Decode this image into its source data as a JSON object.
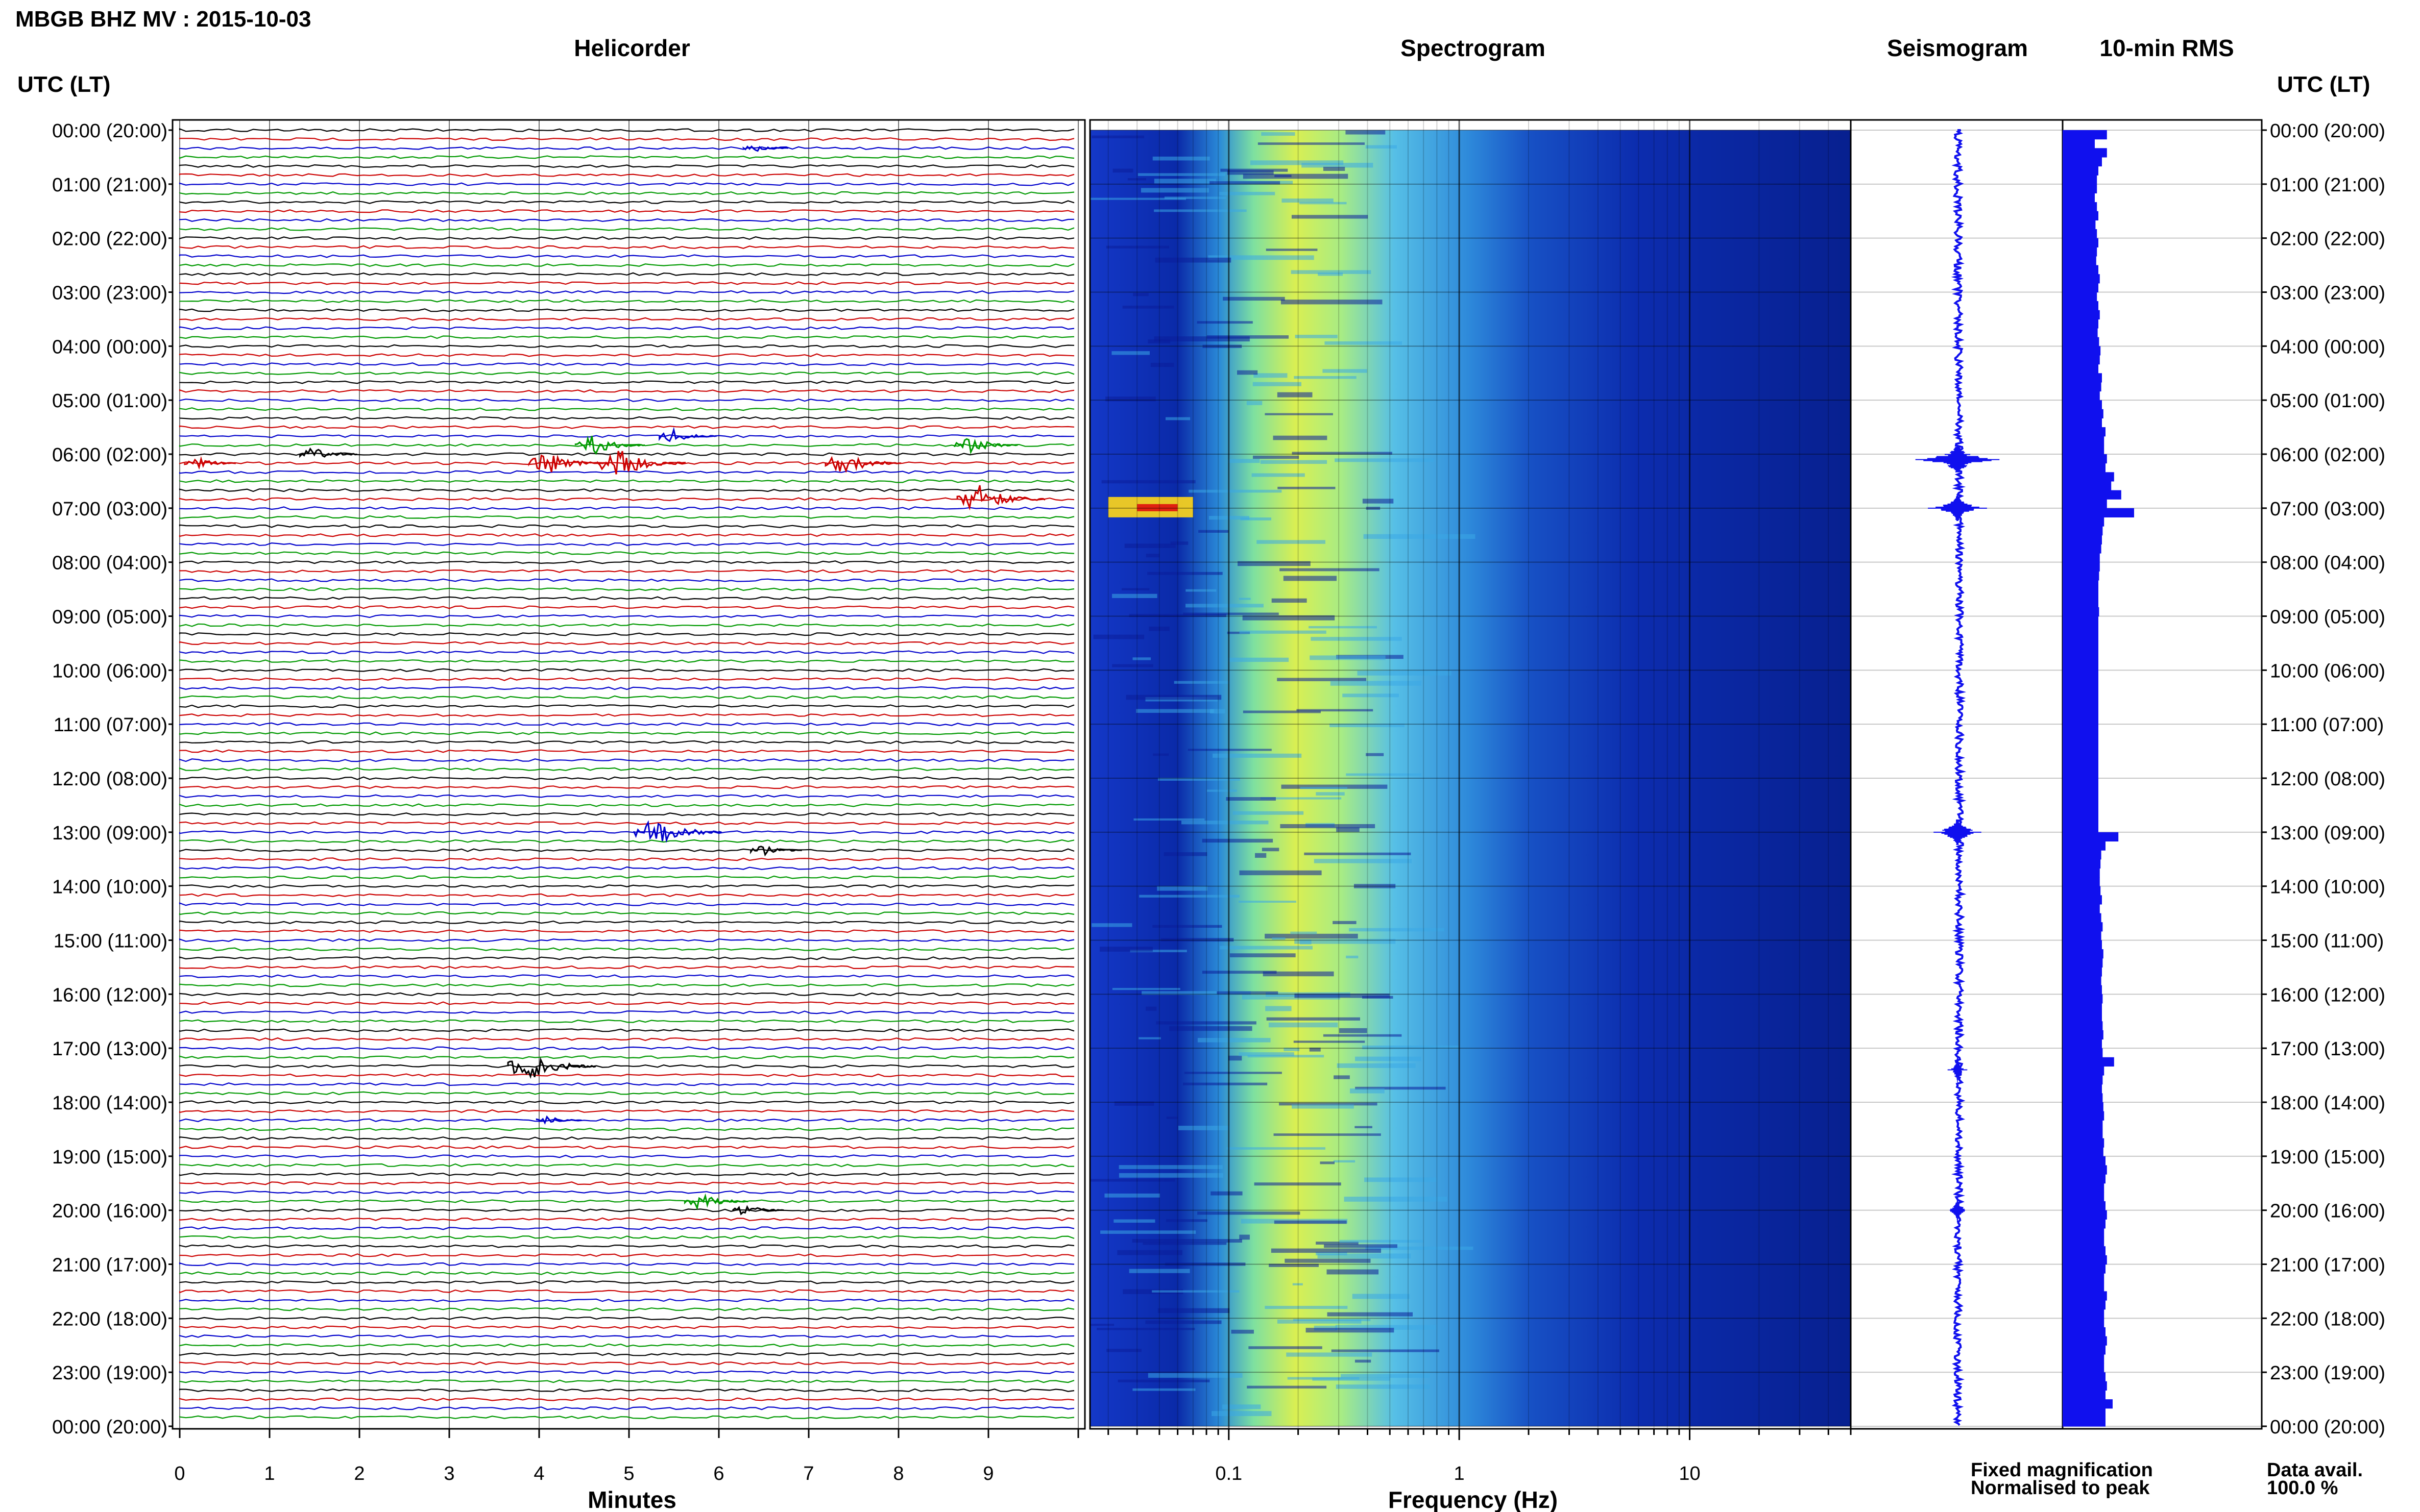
{
  "figure": {
    "title": "MBGB BHZ MV : 2015-10-03",
    "time_header_left": "UTC (LT)",
    "time_header_right": "UTC (LT)",
    "panels": {
      "helicorder": "Helicorder",
      "spectrogram": "Spectrogram",
      "seismogram": "Seismogram",
      "rms": "10-min RMS"
    },
    "legend": {
      "fixed": "Fixed magnification",
      "normalised": "Normalised to peak",
      "data_avail_label": "Data avail.",
      "data_avail_value": "100.0 %"
    },
    "colors": {
      "fixed": "#1010ee",
      "normalised": "#ee1010",
      "trace_cycle": [
        "#000000",
        "#cc0000",
        "#0000cc",
        "#009900"
      ],
      "spectrogram_low": "#0a1aa8",
      "spectrogram_high": "#e8f040"
    }
  },
  "chart_data": [
    {
      "type": "line",
      "name": "helicorder",
      "title": "Helicorder",
      "xlabel": "Minutes",
      "xlim": [
        0,
        10
      ],
      "xticks": [
        "0",
        "1",
        "2",
        "3",
        "4",
        "5",
        "6",
        "7",
        "8",
        "9"
      ],
      "time_labels": [
        "00:00 (20:00)",
        "01:00 (21:00)",
        "02:00 (22:00)",
        "03:00 (23:00)",
        "04:00 (00:00)",
        "05:00 (01:00)",
        "06:00 (02:00)",
        "07:00 (03:00)",
        "08:00 (04:00)",
        "09:00 (05:00)",
        "10:00 (06:00)",
        "11:00 (07:00)",
        "12:00 (08:00)",
        "13:00 (09:00)",
        "14:00 (10:00)",
        "15:00 (11:00)",
        "16:00 (12:00)",
        "17:00 (13:00)",
        "18:00 (14:00)",
        "19:00 (15:00)",
        "20:00 (16:00)",
        "21:00 (17:00)",
        "22:00 (18:00)",
        "23:00 (19:00)",
        "00:00 (20:00)"
      ],
      "line_minutes": 10,
      "events": [
        {
          "hour": 0.3,
          "minute": 6.4,
          "amp": 0.3
        },
        {
          "hour": 5.6,
          "minute": 5.5,
          "amp": 0.5
        },
        {
          "hour": 5.8,
          "minute": 4.6,
          "amp": 0.7
        },
        {
          "hour": 5.8,
          "minute": 8.8,
          "amp": 0.6
        },
        {
          "hour": 6.0,
          "minute": 1.5,
          "amp": 0.5
        },
        {
          "hour": 6.1,
          "minute": 4.1,
          "amp": 0.8
        },
        {
          "hour": 6.2,
          "minute": 4.9,
          "amp": 1.0
        },
        {
          "hour": 6.2,
          "minute": 7.4,
          "amp": 0.8
        },
        {
          "hour": 6.2,
          "minute": 0.2,
          "amp": 0.4
        },
        {
          "hour": 6.9,
          "minute": 8.9,
          "amp": 1.0
        },
        {
          "hour": 13.0,
          "minute": 5.3,
          "amp": 1.0
        },
        {
          "hour": 13.3,
          "minute": 6.5,
          "amp": 0.4
        },
        {
          "hour": 17.3,
          "minute": 3.9,
          "amp": 1.0
        },
        {
          "hour": 18.4,
          "minute": 4.1,
          "amp": 0.3
        },
        {
          "hour": 19.9,
          "minute": 5.8,
          "amp": 0.6
        },
        {
          "hour": 20.0,
          "minute": 6.3,
          "amp": 0.4
        }
      ]
    },
    {
      "type": "heatmap",
      "name": "spectrogram",
      "title": "Spectrogram",
      "xlabel": "Frequency (Hz)",
      "x_scale": "log",
      "xlim": [
        0.025,
        50
      ],
      "xticks": [
        "0.1",
        "1",
        "10"
      ],
      "ylim_hours": [
        0,
        24
      ],
      "peak_band_hz": [
        0.15,
        0.45
      ],
      "bright_patch": {
        "hour": 7.0,
        "freq_range": [
          0.03,
          0.07
        ]
      }
    },
    {
      "type": "line",
      "name": "seismogram",
      "title": "Seismogram",
      "ylim_hours": [
        0,
        24
      ],
      "bursts": [
        {
          "hour": 6.1,
          "amp": 1.0
        },
        {
          "hour": 7.0,
          "amp": 0.6
        },
        {
          "hour": 13.0,
          "amp": 0.6
        },
        {
          "hour": 17.4,
          "amp": 0.2
        },
        {
          "hour": 20.0,
          "amp": 0.2
        }
      ]
    },
    {
      "type": "bar",
      "name": "rms",
      "title": "10-min RMS",
      "orientation": "horizontal",
      "ylim_hours": [
        0,
        24
      ],
      "xlim": [
        0,
        1
      ],
      "values": [
        0.62,
        0.45,
        0.62,
        0.55,
        0.5,
        0.48,
        0.48,
        0.45,
        0.48,
        0.5,
        0.46,
        0.48,
        0.5,
        0.48,
        0.47,
        0.5,
        0.52,
        0.5,
        0.48,
        0.5,
        0.52,
        0.5,
        0.49,
        0.51,
        0.53,
        0.52,
        0.5,
        0.55,
        0.54,
        0.52,
        0.55,
        0.57,
        0.55,
        0.6,
        0.58,
        0.58,
        0.62,
        0.6,
        0.72,
        0.68,
        0.82,
        0.62,
        1.0,
        0.58,
        0.56,
        0.55,
        0.54,
        0.52,
        0.52,
        0.51,
        0.5,
        0.5,
        0.5,
        0.51,
        0.5,
        0.5,
        0.5,
        0.5,
        0.5,
        0.5,
        0.5,
        0.5,
        0.5,
        0.5,
        0.5,
        0.5,
        0.5,
        0.5,
        0.5,
        0.5,
        0.5,
        0.5,
        0.5,
        0.5,
        0.5,
        0.5,
        0.5,
        0.5,
        0.78,
        0.6,
        0.54,
        0.53,
        0.52,
        0.52,
        0.53,
        0.55,
        0.52,
        0.54,
        0.56,
        0.54,
        0.55,
        0.57,
        0.56,
        0.55,
        0.54,
        0.55,
        0.56,
        0.55,
        0.55,
        0.56,
        0.57,
        0.55,
        0.56,
        0.72,
        0.58,
        0.56,
        0.55,
        0.56,
        0.57,
        0.58,
        0.56,
        0.56,
        0.58,
        0.57,
        0.6,
        0.62,
        0.6,
        0.58,
        0.58,
        0.6,
        0.62,
        0.6,
        0.58,
        0.58,
        0.6,
        0.62,
        0.6,
        0.58,
        0.58,
        0.62,
        0.6,
        0.58,
        0.58,
        0.6,
        0.62,
        0.6,
        0.58,
        0.58,
        0.6,
        0.62,
        0.6,
        0.7,
        0.6,
        0.6
      ]
    }
  ]
}
